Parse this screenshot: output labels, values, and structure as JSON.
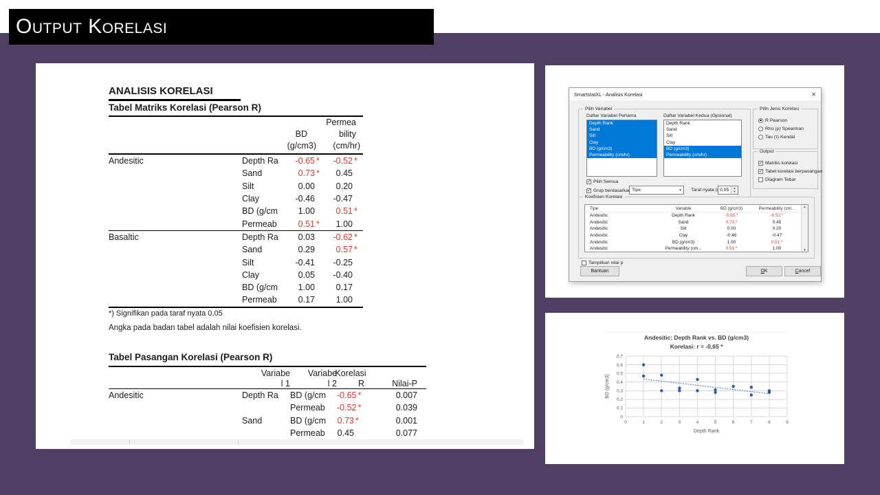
{
  "slide": {
    "title": "Output Korelasi"
  },
  "colors": {
    "slide_purple": "#4e3f63",
    "sig_red": "#e0392e",
    "selection_blue": "#0078d7",
    "point_blue": "#2e5aa7",
    "trend_blue": "#4472c4"
  },
  "icons": {
    "close": "✕",
    "dropdown_arrow": "▾",
    "spin_up": "▲",
    "spin_down": "▼",
    "scroll_up": "▲",
    "scroll_down": "▼",
    "check": "✓"
  },
  "report": {
    "heading": "ANALISIS KORELASI",
    "matrix": {
      "title": "Tabel Matriks Korelasi (Pearson R)",
      "header": {
        "bd_line1": "BD",
        "bd_line2": "(g/cm3)",
        "perm_line1": "Permea",
        "perm_line2": "bility",
        "perm_line3": "(cm/hr)"
      },
      "groups": [
        {
          "name": "Andesitic",
          "rows": [
            {
              "variable": "Depth Ra",
              "bd": "-0.65",
              "bd_sig": true,
              "perm": "-0.52",
              "perm_sig": true
            },
            {
              "variable": "Sand",
              "bd": "0.73",
              "bd_sig": true,
              "perm": "0.45",
              "perm_sig": false
            },
            {
              "variable": "Silt",
              "bd": "0.00",
              "bd_sig": false,
              "perm": "0.20",
              "perm_sig": false
            },
            {
              "variable": "Clay",
              "bd": "-0.46",
              "bd_sig": false,
              "perm": "-0.47",
              "perm_sig": false
            },
            {
              "variable": "BD (g/cm",
              "bd": "1.00",
              "bd_sig": false,
              "perm": "0.51",
              "perm_sig": true
            },
            {
              "variable": "Permeab",
              "bd": "0.51",
              "bd_sig": true,
              "perm": "1.00",
              "perm_sig": false
            }
          ]
        },
        {
          "name": "Basaltic",
          "rows": [
            {
              "variable": "Depth Ra",
              "bd": "0.03",
              "bd_sig": false,
              "perm": "-0.62",
              "perm_sig": true
            },
            {
              "variable": "Sand",
              "bd": "0.29",
              "bd_sig": false,
              "perm": "0.57",
              "perm_sig": true
            },
            {
              "variable": "Silt",
              "bd": "-0.41",
              "bd_sig": false,
              "perm": "-0.25",
              "perm_sig": false
            },
            {
              "variable": "Clay",
              "bd": "0.05",
              "bd_sig": false,
              "perm": "-0.40",
              "perm_sig": false
            },
            {
              "variable": "BD (g/cm",
              "bd": "1.00",
              "bd_sig": false,
              "perm": "0.17",
              "perm_sig": false
            },
            {
              "variable": "Permeab",
              "bd": "0.17",
              "bd_sig": false,
              "perm": "1.00",
              "perm_sig": false
            }
          ]
        }
      ],
      "footnote1": "*) Signifikan pada taraf nyata 0,05",
      "footnote2": "Angka pada badan tabel adalah nilai koefisien korelasi."
    },
    "pairs": {
      "title": "Tabel Pasangan Korelasi (Pearson R)",
      "header": {
        "v1_line1": "Variabe",
        "v1_line2": "l 1",
        "v2_line1": "Variabe",
        "v2_line2": "l 2",
        "r_line1": "Korelasi",
        "r_line2": "R",
        "p": "Nilai-P"
      },
      "rows": [
        {
          "group": "Andesitic",
          "var1": "Depth Ra",
          "var2": "BD (g/cm",
          "r": "-0.65",
          "r_sig": true,
          "p": "0.007"
        },
        {
          "group": "",
          "var1": "",
          "var2": "Permeab",
          "r": "-0.52",
          "r_sig": true,
          "p": "0.039"
        },
        {
          "group": "",
          "var1": "Sand",
          "var2": "BD (g/cm",
          "r": "0.73",
          "r_sig": true,
          "p": "0.001"
        },
        {
          "group": "",
          "var1": "",
          "var2": "Permeab",
          "r": "0.45",
          "r_sig": false,
          "p": "0.077"
        }
      ]
    }
  },
  "dialog": {
    "title": "SmartstatXL - Analisis Korelasi",
    "pilih_variabel": {
      "label": "Pilih Variabel",
      "list1": {
        "label": "Daftar Variabel Pertama",
        "items": [
          "Depth Rank",
          "Sand",
          "Silt",
          "Clay",
          "BD (g/cm3)",
          "Permeability (cm/hr)"
        ],
        "selected": [
          0,
          1,
          2,
          3,
          4,
          5
        ]
      },
      "list2": {
        "label": "Daftar Variabel Kedua (Opsional)",
        "items": [
          "Depth Rank",
          "Sand",
          "Silt",
          "Clay",
          "BD (g/cm3)",
          "Permeability (cm/hr)"
        ],
        "selected": [
          4,
          5
        ]
      },
      "pilih_semua": "Pilih Semua",
      "grup_berdasarkan": "Grup berdasarkan:",
      "grup_value": "Tipe",
      "taraf_label": "Taraf nyata (α)",
      "taraf_value": "0,05"
    },
    "jenis": {
      "label": "Pilih Jenis Korelasi",
      "options": [
        {
          "label": "R Pearson",
          "selected": true
        },
        {
          "label": "Rho (ρ) Spearman",
          "selected": false
        },
        {
          "label": "Tau (τ) Kendal",
          "selected": false
        }
      ]
    },
    "output": {
      "label": "Output",
      "options": [
        {
          "label": "Matriks korelasi",
          "checked": true
        },
        {
          "label": "Tabel korelasi berpasangan",
          "checked": true
        },
        {
          "label": "Diagram Tebar",
          "checked": false
        }
      ]
    },
    "koefisien": {
      "label": "Koefisien Korelasi",
      "headers": [
        "Tipe",
        "Variable",
        "BD (g/cm3)",
        "Permeability (cm..."
      ],
      "rows": [
        {
          "tipe": "Andesitic",
          "variable": "Depth Rank",
          "bd": "-0.65 *",
          "bd_sig": true,
          "perm": "-0.52 *",
          "perm_sig": true
        },
        {
          "tipe": "Andesitic",
          "variable": "Sand",
          "bd": "0.73 *",
          "bd_sig": true,
          "perm": "0.45",
          "perm_sig": false
        },
        {
          "tipe": "Andesitic",
          "variable": "Silt",
          "bd": "0.00",
          "bd_sig": false,
          "perm": "0.20",
          "perm_sig": false
        },
        {
          "tipe": "Andesitic",
          "variable": "Clay",
          "bd": "-0.46",
          "bd_sig": false,
          "perm": "-0.47",
          "perm_sig": false
        },
        {
          "tipe": "Andesitic",
          "variable": "BD (g/cm3)",
          "bd": "1.00",
          "bd_sig": false,
          "perm": "0.51 *",
          "perm_sig": true
        },
        {
          "tipe": "Andesitic",
          "variable": "Permeability (cm...",
          "bd": "0.51 *",
          "bd_sig": true,
          "perm": "1.00",
          "perm_sig": false
        }
      ]
    },
    "tampilkan": "Tampilkan nilai p",
    "buttons": {
      "bantuan": "Bantuan",
      "ok": "OK",
      "cancel": "Cancel"
    }
  },
  "chart_data": {
    "type": "scatter",
    "title": "Andesitic: Depth Rank vs. BD (g/cm3)",
    "subtitle": "Korelasi: r = -0,65 *",
    "xlabel": "Depth Rank",
    "ylabel": "BD (g/cm3)",
    "xlim": [
      0,
      9
    ],
    "ylim": [
      0,
      0.7
    ],
    "xticks": [
      0,
      1,
      2,
      3,
      4,
      5,
      6,
      7,
      8,
      9
    ],
    "yticks": [
      0,
      0.1,
      0.2,
      0.3,
      0.4,
      0.5,
      0.6,
      0.7
    ],
    "grid": true,
    "legend": "none",
    "point_color": "#2e5aa7",
    "points": [
      [
        1,
        0.6
      ],
      [
        1,
        0.47
      ],
      [
        2,
        0.48
      ],
      [
        2,
        0.3
      ],
      [
        3,
        0.33
      ],
      [
        3,
        0.3
      ],
      [
        4,
        0.43
      ],
      [
        4,
        0.3
      ],
      [
        5,
        0.31
      ],
      [
        5,
        0.28
      ],
      [
        6,
        0.35
      ],
      [
        7,
        0.34
      ],
      [
        7,
        0.25
      ],
      [
        8,
        0.3
      ],
      [
        8,
        0.28
      ]
    ],
    "trendline": {
      "x1": 1,
      "y1": 0.435,
      "x2": 8,
      "y2": 0.265,
      "style": "dotted",
      "color": "#4472c4"
    }
  }
}
